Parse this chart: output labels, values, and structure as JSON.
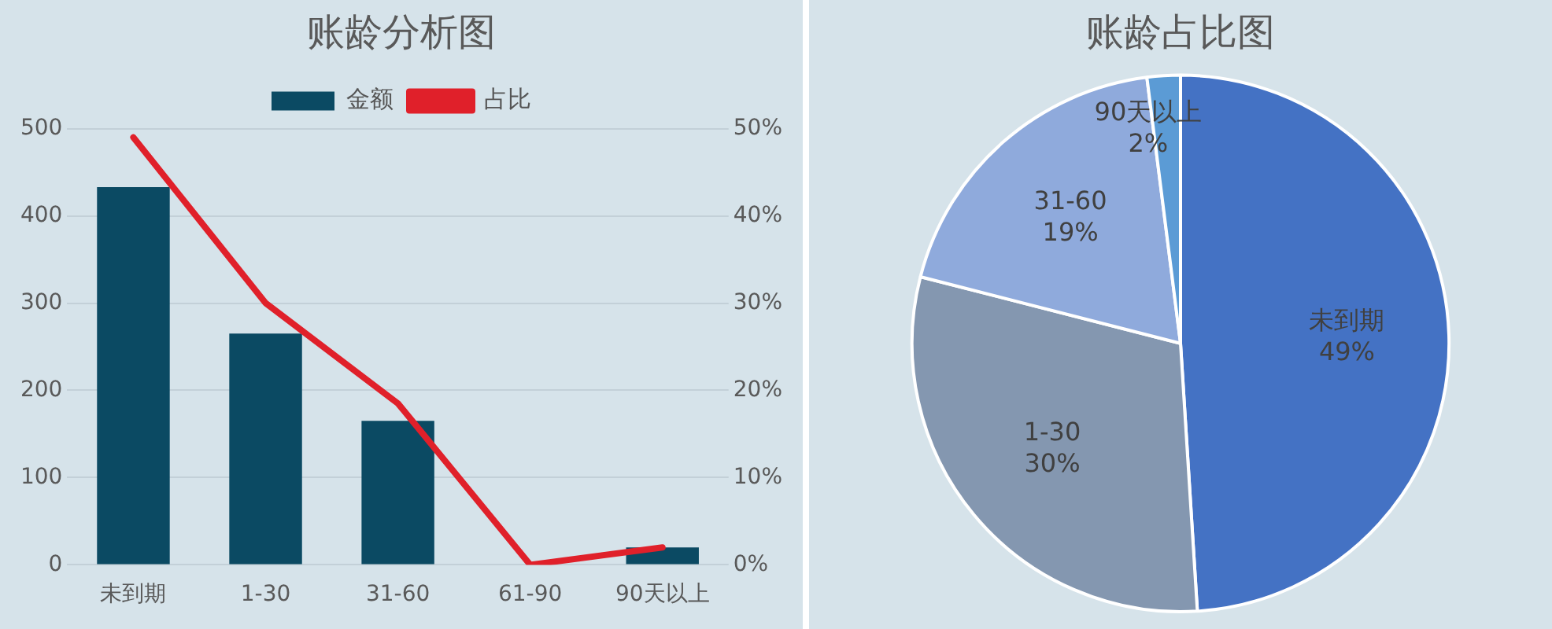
{
  "chart_data": [
    {
      "type": "bar",
      "title": "账龄分析图",
      "categories": [
        "未到期",
        "1-30",
        "31-60",
        "61-90",
        "90天以上"
      ],
      "series": [
        {
          "name": "金额",
          "color": "#0b4a63",
          "values": [
            433,
            265,
            165,
            0,
            20
          ]
        },
        {
          "name": "占比",
          "type": "line",
          "axis": "y2",
          "color": "#e0202a",
          "values": [
            49,
            30,
            18.5,
            0,
            2
          ]
        }
      ],
      "ylim": [
        0,
        500
      ],
      "yticks": [
        0,
        100,
        200,
        300,
        400,
        500
      ],
      "y2lim": [
        0,
        50
      ],
      "y2ticks": [
        {
          "value": 0,
          "label": "0%"
        },
        {
          "value": 10,
          "label": "10%"
        },
        {
          "value": 20,
          "label": "20%"
        },
        {
          "value": 30,
          "label": "30%"
        },
        {
          "value": 40,
          "label": "40%"
        },
        {
          "value": 50,
          "label": "50%"
        }
      ],
      "grid": "y",
      "legend": "top",
      "marker": "none",
      "line_style": "solid"
    },
    {
      "type": "pie",
      "title": "账龄占比图",
      "categories": [
        "未到期",
        "1-30",
        "31-60",
        "90天以上"
      ],
      "values": [
        49,
        30,
        19,
        2
      ],
      "colors": [
        "#4472c4",
        "#8497b0",
        "#8faadc",
        "#5b9bd5"
      ],
      "value_labels": [
        "49%",
        "30%",
        "19%",
        "2%"
      ],
      "legend": false
    }
  ]
}
